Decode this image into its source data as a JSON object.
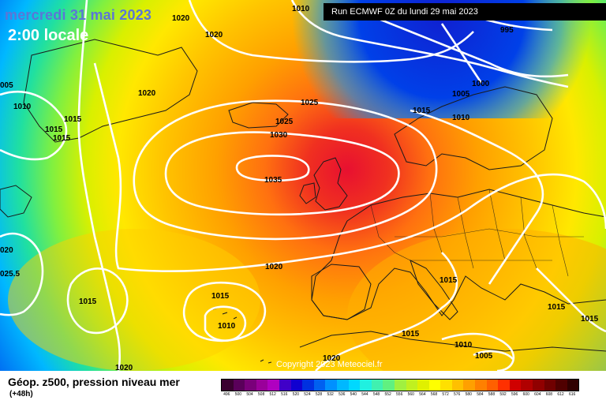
{
  "header": {
    "date": "mercredi 31 mai 2023",
    "time": "2:00 locale",
    "run": "Run ECMWF 0Z du lundi 29 mai 2023",
    "copyright": "Copyright 2023 Meteociel.fr"
  },
  "footer": {
    "title": "Géop. z500, pression niveau mer",
    "subtitle": "(+48h)"
  },
  "colors": {
    "land_borders": "#1a1a1a",
    "isobars": "#ffffff",
    "scale": [
      "#3a0030",
      "#5a005a",
      "#7a007a",
      "#9a009a",
      "#b000c0",
      "#8000c8",
      "#4000c8",
      "#1000d0",
      "#0030e0",
      "#0060f0",
      "#0090ff",
      "#00b8ff",
      "#00d8ff",
      "#20f0e0",
      "#40f0b0",
      "#60f080",
      "#80f060",
      "#a0f040",
      "#c0f020",
      "#e0f000",
      "#ffff00",
      "#ffe000",
      "#ffc000",
      "#ffa000",
      "#ff8000",
      "#ff6000",
      "#ff3000",
      "#f00000",
      "#d00000",
      "#b00000",
      "#900000",
      "#700000",
      "#500000",
      "#300000"
    ]
  },
  "scale_labels": [
    "496",
    "500",
    "504",
    "508",
    "512",
    "516",
    "520",
    "524",
    "528",
    "532",
    "536",
    "540",
    "544",
    "548",
    "552",
    "556",
    "560",
    "564",
    "568",
    "572",
    "576",
    "580",
    "584",
    "588",
    "592",
    "596",
    "600",
    "604",
    "608",
    "612",
    "616"
  ],
  "isobar_labels": [
    {
      "text": "1020"
    },
    {
      "text": "1010"
    },
    {
      "text": "995"
    },
    {
      "text": "1020"
    },
    {
      "text": "005"
    },
    {
      "text": "1010"
    },
    {
      "text": "1015"
    },
    {
      "text": "1015"
    },
    {
      "text": "1015"
    },
    {
      "text": "1020"
    },
    {
      "text": "1025"
    },
    {
      "text": "1025"
    },
    {
      "text": "1030"
    },
    {
      "text": "1035"
    },
    {
      "text": "1015"
    },
    {
      "text": "1005"
    },
    {
      "text": "1000"
    },
    {
      "text": "1010"
    },
    {
      "text": "020"
    },
    {
      "text": "025.5"
    },
    {
      "text": "1015"
    },
    {
      "text": "1015"
    },
    {
      "text": "1010"
    },
    {
      "text": "1020"
    },
    {
      "text": "1015"
    },
    {
      "text": "1015"
    },
    {
      "text": "1010"
    },
    {
      "text": "1005"
    },
    {
      "text": "1020"
    },
    {
      "text": "1015"
    },
    {
      "text": "1015"
    },
    {
      "text": "1020"
    }
  ]
}
